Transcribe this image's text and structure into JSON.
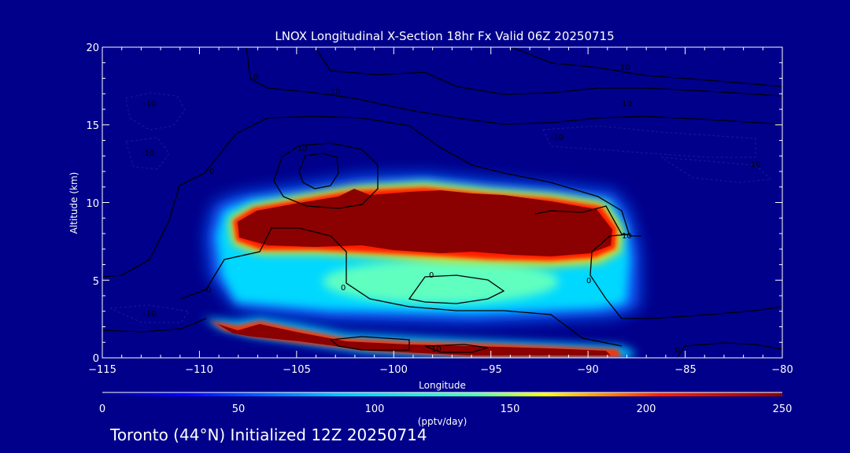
{
  "chart_data": {
    "type": "heatmap",
    "title": "LNOX Longitudinal X-Section 18hr  Fx Valid 06Z 20250715",
    "xlabel": "Longitude",
    "ylabel": "Altitude (km)",
    "xlim": [
      -115,
      -80
    ],
    "ylim": [
      0,
      20
    ],
    "x_ticks": [
      "−115",
      "−110",
      "−105",
      "−100",
      "−95",
      "−90",
      "−85",
      "−80"
    ],
    "y_ticks": [
      "0",
      "5",
      "10",
      "15",
      "20"
    ],
    "colorbar": {
      "label": "(pptv/day)",
      "range": [
        0,
        250
      ],
      "ticks": [
        "0",
        "50",
        "100",
        "150",
        "200",
        "250"
      ],
      "colors": [
        "#00008b",
        "#0000ff",
        "#00ffff",
        "#ffff00",
        "#ff0000",
        "#8b0000"
      ]
    },
    "field": {
      "main_band": {
        "lon": [
          -109.5,
          -88.5
        ],
        "alt": [
          7.0,
          10.3
        ],
        "value": 250
      },
      "halo": {
        "lon": [
          -110.5,
          -87.5
        ],
        "alt": [
          3.0,
          11.0
        ],
        "value": 80
      },
      "ground_band": {
        "lon": [
          -110.0,
          -88.0
        ],
        "alt": [
          0.2,
          2.6
        ],
        "value": 250
      }
    },
    "contour_labels": [
      "0",
      "0",
      "0",
      "0",
      "0",
      "0",
      "0",
      "10",
      "10",
      "10",
      "10",
      "10",
      "10",
      "-10",
      "-10",
      "-10",
      "-10",
      "-10"
    ]
  },
  "footer": "Toronto (44°N) Initialized 12Z 20250714"
}
